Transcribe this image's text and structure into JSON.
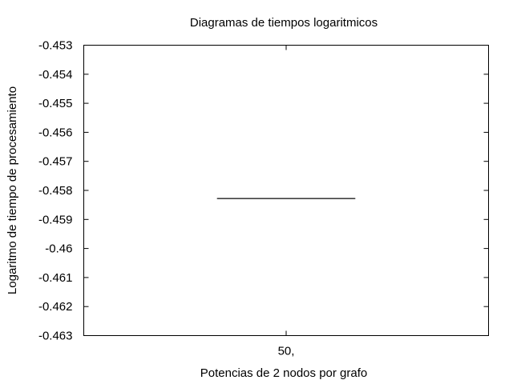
{
  "chart_data": {
    "type": "box",
    "title": "Diagramas de tiempos logaritmicos",
    "xlabel": "Potencias de 2 nodos por grafo",
    "ylabel": "Logaritmo de tiempo de procesamiento",
    "categories": [
      "50,"
    ],
    "ylim": [
      -0.463,
      -0.453
    ],
    "yticks": [
      -0.453,
      -0.454,
      -0.455,
      -0.456,
      -0.457,
      -0.458,
      -0.459,
      -0.46,
      -0.461,
      -0.462,
      -0.463
    ],
    "ytick_labels": [
      "-0.453",
      "-0.454",
      "-0.455",
      "-0.456",
      "-0.457",
      "-0.458",
      "-0.459",
      "-0.46",
      "-0.461",
      "-0.462",
      "-0.463"
    ],
    "series": [
      {
        "category": "50,",
        "min": -0.45828,
        "q1": -0.45828,
        "median": -0.45828,
        "q3": -0.45828,
        "max": -0.45828
      }
    ],
    "grid": false,
    "legend": "none",
    "colors": {
      "axis": "#000000",
      "box": "#000000",
      "background": "#ffffff"
    }
  }
}
